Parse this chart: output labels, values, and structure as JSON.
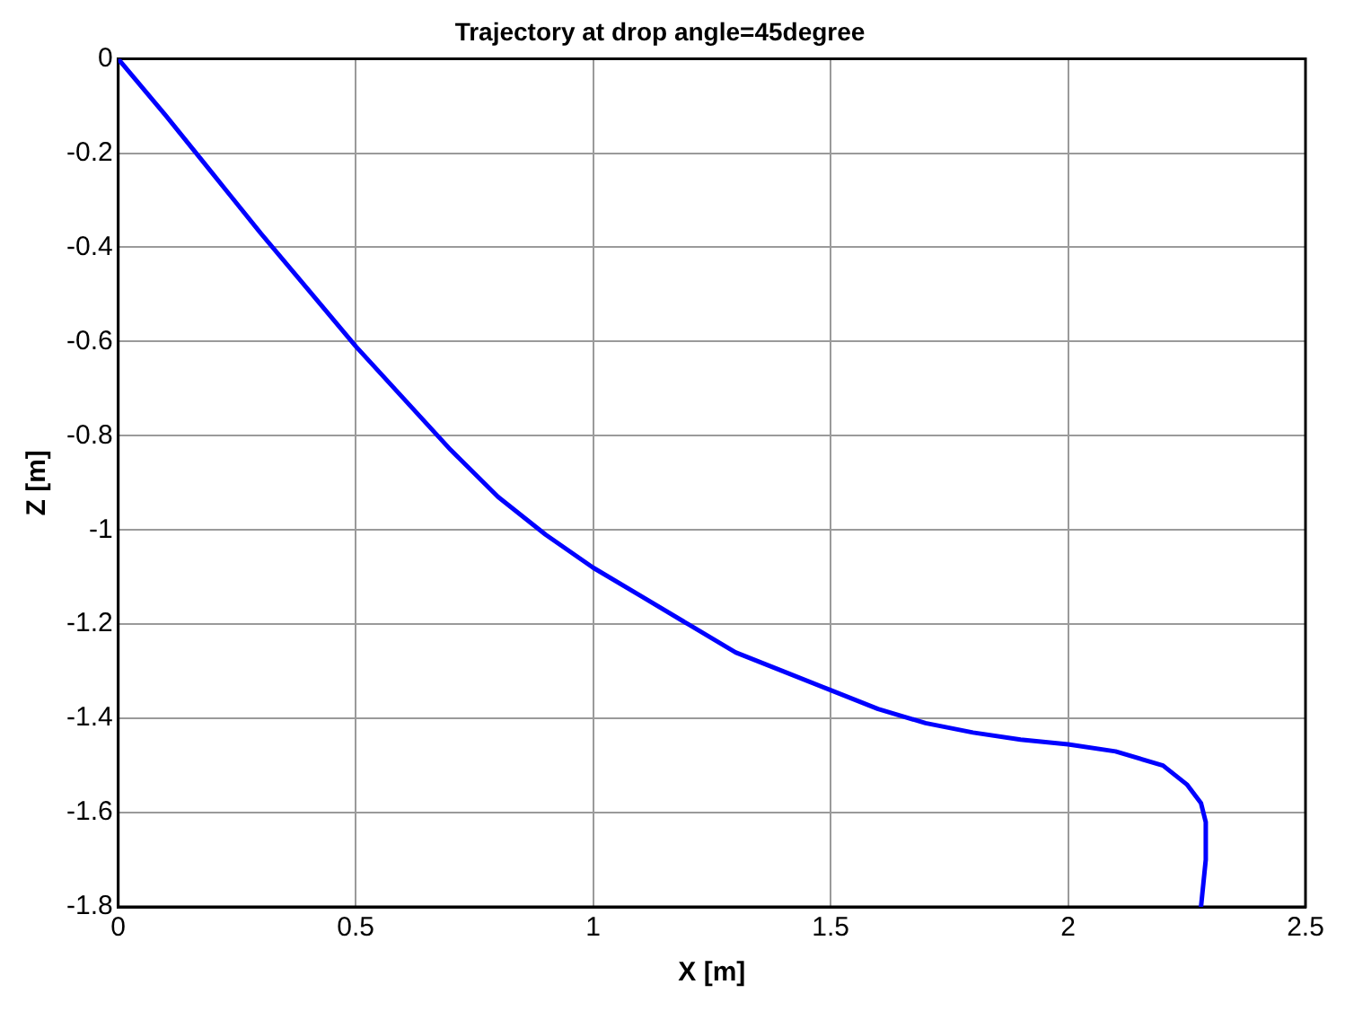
{
  "chart_data": {
    "type": "line",
    "title": "Trajectory at drop angle=45degree",
    "xlabel": "X [m]",
    "ylabel": "Z [m]",
    "xlim": [
      0,
      2.5
    ],
    "xticks": [
      0,
      0.5,
      1,
      1.5,
      2,
      2.5
    ],
    "ylim": [
      -1.8,
      0
    ],
    "yticks": [
      -1.8,
      -1.6,
      -1.4,
      -1.2,
      -1,
      -0.8,
      -0.6,
      -0.4,
      -0.2,
      0
    ],
    "grid": true,
    "line_style": "solid",
    "marker": "none",
    "series": [
      {
        "color": "#0000ff",
        "x": [
          0,
          0.1,
          0.2,
          0.3,
          0.4,
          0.5,
          0.6,
          0.7,
          0.8,
          0.9,
          1.0,
          1.1,
          1.2,
          1.3,
          1.4,
          1.5,
          1.6,
          1.7,
          1.8,
          1.9,
          2.0,
          2.1,
          2.2,
          2.25,
          2.28,
          2.29,
          2.29,
          2.285,
          2.28
        ],
        "values": [
          0,
          -0.12,
          -0.245,
          -0.37,
          -0.49,
          -0.61,
          -0.72,
          -0.83,
          -0.93,
          -1.01,
          -1.08,
          -1.14,
          -1.2,
          -1.26,
          -1.3,
          -1.34,
          -1.38,
          -1.41,
          -1.43,
          -1.445,
          -1.455,
          -1.47,
          -1.5,
          -1.54,
          -1.58,
          -1.62,
          -1.7,
          -1.75,
          -1.8
        ]
      }
    ]
  }
}
